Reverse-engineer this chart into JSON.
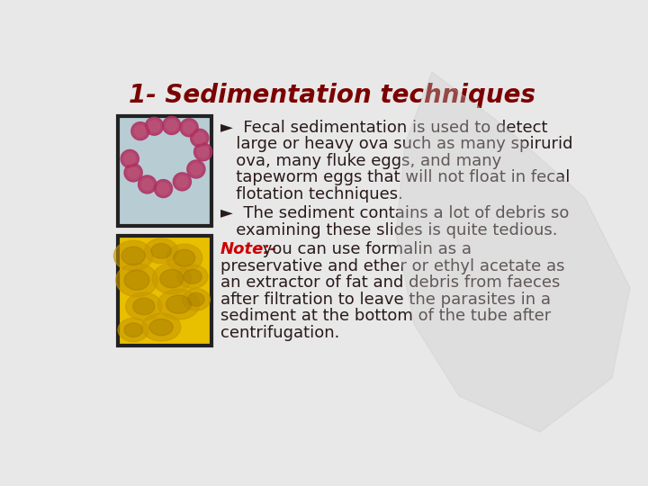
{
  "title": "1- Sedimentation techniques",
  "title_color": "#7B0000",
  "title_fontsize": 20,
  "bg_color": "#e8e8e8",
  "text_color": "#2a1a1a",
  "note_color": "#cc0000",
  "text_fontsize": 13,
  "font_family": "DejaVu Sans",
  "img1_facecolor": "#b8ccd4",
  "img1_edgecolor": "#222222",
  "img2_facecolor": "#e8c000",
  "img2_edgecolor": "#222222",
  "bullet_char": "►",
  "bullet1_lines": [
    "►  Fecal sedimentation is used to detect",
    "   large or heavy ova such as many spirurid",
    "   ova, many fluke eggs, and many",
    "   tapeworm eggs that will not float in fecal",
    "   flotation techniques."
  ],
  "bullet2_lines": [
    "►  The sediment contains a lot of debris so",
    "   examining these slides is quite tedious."
  ],
  "note_label": "Note:-",
  "note_lines": [
    " you can use formalin as a",
    "preservative and ether or ethyl acetate as",
    "an extractor of fat and debris from faeces",
    "after filtration to leave the parasites in a",
    "sediment at the bottom of the tube after",
    "centrifugation."
  ]
}
